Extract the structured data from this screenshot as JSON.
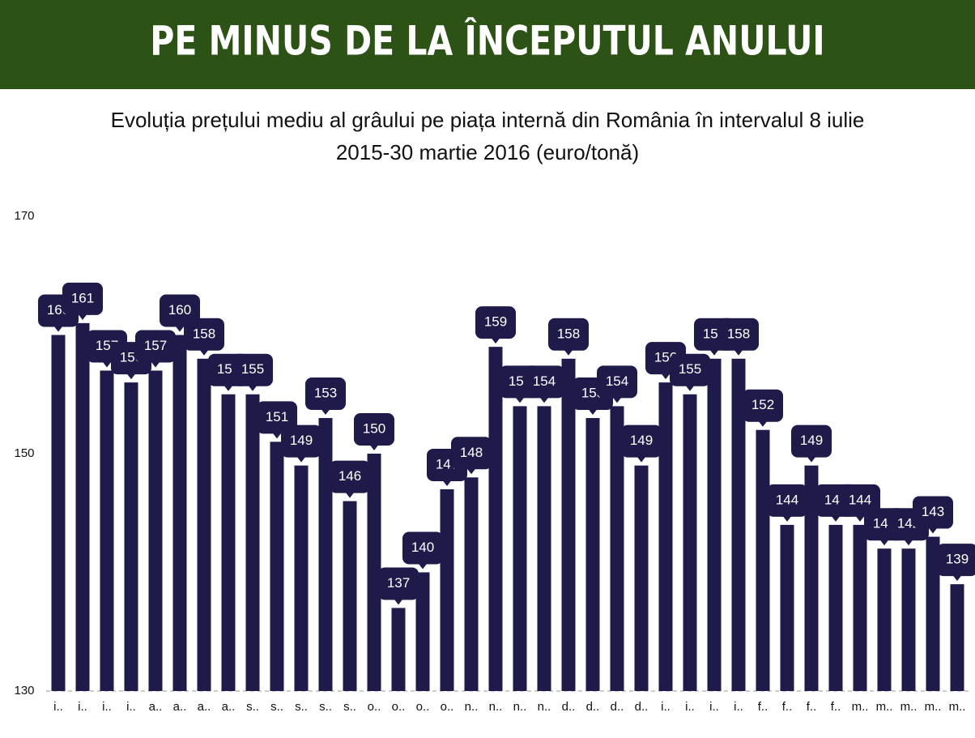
{
  "chart_data": {
    "type": "bar",
    "title": "PE MINUS DE LA ÎNCEPUTUL ANULUI",
    "subtitle": [
      "Evoluția prețului mediu al grâului pe piața internă din România în intervalul 8 iulie",
      "2015-30 martie 2016 (euro/tonă)"
    ],
    "categories": [
      "i..",
      "i..",
      "i..",
      "i..",
      "a..",
      "a..",
      "a..",
      "a..",
      "s..",
      "s..",
      "s..",
      "s..",
      "s..",
      "o..",
      "o..",
      "o..",
      "o..",
      "n..",
      "n..",
      "n..",
      "n..",
      "d..",
      "d..",
      "d..",
      "d..",
      "i..",
      "i..",
      "i..",
      "i..",
      "f..",
      "f..",
      "f..",
      "f..",
      "m..",
      "m..",
      "m..",
      "m..",
      "m.."
    ],
    "values": [
      160,
      161,
      157,
      156,
      157,
      160,
      158,
      155,
      155,
      151,
      149,
      153,
      146,
      150,
      137,
      140,
      147,
      148,
      159,
      154,
      154,
      158,
      153,
      154,
      149,
      156,
      155,
      158,
      158,
      152,
      144,
      149,
      144,
      144,
      142,
      142,
      143,
      139
    ],
    "color": "#1e1a4a",
    "ylim": [
      130,
      170
    ],
    "yticks": [
      130,
      150,
      170
    ]
  }
}
